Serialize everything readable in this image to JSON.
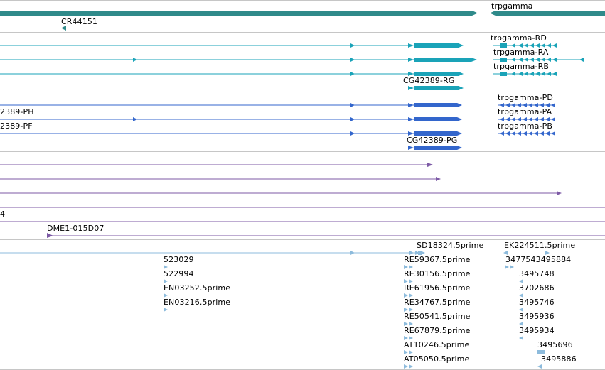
{
  "tracks": {
    "gene_track": {
      "labels": {
        "trpgamma": "trpgamma",
        "cr44151": "CR44151"
      }
    },
    "transcripts_a": {
      "labels": {
        "rd": "trpgamma-RD",
        "ra": "trpgamma-RA",
        "rb": "trpgamma-RB",
        "rg": "CG42389-RG"
      }
    },
    "transcripts_b": {
      "labels": {
        "pd": "trpgamma-PD",
        "ph": "2389-PH",
        "pa": "trpgamma-PA",
        "pf": "2389-PF",
        "pb": "trpgamma-PB",
        "pg": "CG42389-PG"
      }
    },
    "misc_track": {
      "labels": {
        "four": "4"
      }
    },
    "clone_track": {
      "labels": {
        "dme1": "DME1-015D07"
      }
    },
    "est_track": {
      "labels": {
        "sd18324": "SD18324.5prime",
        "ek224511": "EK224511.5prime",
        "n523029": "523029",
        "re59367": "RE59367.5prime",
        "n3477543495884": "3477543495884",
        "n522994": "522994",
        "re30156": "RE30156.5prime",
        "n3495748": "3495748",
        "en03252": "EN03252.5prime",
        "re61956": "RE61956.5prime",
        "n3702686": "3702686",
        "en03216": "EN03216.5prime",
        "re34767": "RE34767.5prime",
        "n3495746": "3495746",
        "re50541": "RE50541.5prime",
        "n3495936": "3495936",
        "re67879": "RE67879.5prime",
        "n3495934": "3495934",
        "at10246": "AT10246.5prime",
        "n3495696": "3495696",
        "at05050": "AT05050.5prime",
        "n3495886": "3495886"
      }
    }
  },
  "colors": {
    "gene_teal": "#2f8a8a",
    "transcript_cyan": "#1aa3b8",
    "protein_blue": "#3366cc",
    "purple": "#7d5aa6",
    "est_light_blue": "#8dbbdc",
    "separator": "#c6c6c6"
  }
}
